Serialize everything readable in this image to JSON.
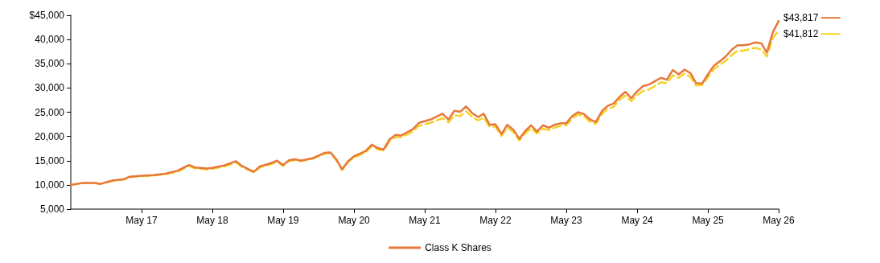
{
  "chart_data": {
    "type": "line",
    "x": [
      "2016-05",
      "2016-07",
      "2016-09",
      "2016-10",
      "2016-12",
      "2017-02",
      "2017-03",
      "2017-05",
      "2017-07",
      "2017-09",
      "2017-11",
      "2018-01",
      "2018-02",
      "2018-04",
      "2018-05",
      "2018-07",
      "2018-09",
      "2018-10",
      "2018-12",
      "2019-01",
      "2019-03",
      "2019-04",
      "2019-05",
      "2019-06",
      "2019-07",
      "2019-08",
      "2019-10",
      "2019-12",
      "2020-01",
      "2020-02",
      "2020-03",
      "2020-04",
      "2020-05",
      "2020-07",
      "2020-08",
      "2020-09",
      "2020-10",
      "2020-11",
      "2020-12",
      "2021-01",
      "2021-03",
      "2021-04",
      "2021-06",
      "2021-08",
      "2021-09",
      "2021-10",
      "2021-11",
      "2021-12",
      "2022-01",
      "2022-02",
      "2022-03",
      "2022-04",
      "2022-05",
      "2022-06",
      "2022-07",
      "2022-08",
      "2022-09",
      "2022-10",
      "2022-11",
      "2022-12",
      "2023-01",
      "2023-02",
      "2023-03",
      "2023-04",
      "2023-05",
      "2023-06",
      "2023-07",
      "2023-08",
      "2023-09",
      "2023-10",
      "2023-11",
      "2023-12",
      "2024-01",
      "2024-02",
      "2024-03",
      "2024-04",
      "2024-05",
      "2024-06",
      "2024-07",
      "2024-08",
      "2024-09",
      "2024-10",
      "2024-11",
      "2024-12",
      "2025-01",
      "2025-02",
      "2025-03",
      "2025-04",
      "2025-05",
      "2025-06",
      "2025-07",
      "2025-08",
      "2025-09",
      "2025-10",
      "2025-11",
      "2025-12",
      "2026-01",
      "2026-02",
      "2026-03",
      "2026-04",
      "2026-05"
    ],
    "series": [
      {
        "name": "Class K Shares",
        "color": "#e8773a",
        "line_style": "solid",
        "values": [
          10000,
          10400,
          10400,
          10200,
          10900,
          11200,
          11700,
          11900,
          12000,
          12300,
          12900,
          14100,
          13600,
          13400,
          13500,
          14000,
          14900,
          13900,
          12700,
          13800,
          14500,
          15000,
          14100,
          15100,
          15300,
          15000,
          15500,
          16600,
          16700,
          15200,
          13200,
          14900,
          15900,
          17000,
          18300,
          17600,
          17300,
          19400,
          20300,
          20200,
          21500,
          22800,
          23500,
          24700,
          23500,
          25300,
          25100,
          26200,
          24800,
          24000,
          24700,
          22400,
          22500,
          20500,
          22400,
          21400,
          19500,
          21100,
          22300,
          21000,
          22300,
          21800,
          22400,
          22700,
          22700,
          24200,
          25000,
          24600,
          23500,
          23000,
          25200,
          26300,
          26800,
          28200,
          29200,
          27900,
          29300,
          30400,
          30700,
          31400,
          32100,
          31700,
          33700,
          32800,
          33800,
          33000,
          31000,
          30900,
          32800,
          34600,
          35500,
          36500,
          37900,
          38800,
          38800,
          39000,
          39400,
          39200,
          37300,
          41500,
          43817
        ],
        "value_labels": [
          null,
          null,
          null,
          null,
          null,
          null,
          null,
          null,
          null,
          null,
          null,
          null,
          null,
          null,
          null,
          null,
          null,
          null,
          null,
          null,
          null,
          null,
          null,
          null,
          null,
          null,
          null,
          null,
          null,
          null,
          null,
          null,
          null,
          null,
          null,
          null,
          null,
          null,
          null,
          null,
          null,
          null,
          null,
          null,
          null,
          null,
          null,
          null,
          null,
          null,
          null,
          null,
          null,
          null,
          null,
          null,
          null,
          null,
          null,
          null,
          null,
          null,
          null,
          null,
          null,
          null,
          null,
          null,
          null,
          null,
          null,
          null,
          null,
          null,
          null,
          null,
          null,
          null,
          null,
          null,
          null,
          null,
          null,
          null,
          null,
          null,
          null,
          null,
          null,
          null,
          null,
          null,
          null,
          null,
          null,
          null,
          null,
          null,
          null,
          null,
          "$43,817"
        ]
      },
      {
        "color": "#f5d327",
        "line_style": "dashed",
        "values": [
          10000,
          10400,
          10400,
          10200,
          10800,
          11100,
          11600,
          11800,
          11900,
          12200,
          12700,
          13900,
          13400,
          13200,
          13300,
          13800,
          14600,
          13700,
          12600,
          13600,
          14300,
          14800,
          13900,
          14900,
          15100,
          14900,
          15400,
          16400,
          16600,
          15000,
          13100,
          14700,
          15600,
          16700,
          18000,
          17300,
          17100,
          19100,
          19800,
          19800,
          21000,
          22200,
          22800,
          23800,
          22900,
          24400,
          24200,
          25200,
          24000,
          23300,
          23900,
          22000,
          22000,
          20100,
          21800,
          20900,
          19200,
          20600,
          21700,
          20600,
          21600,
          21300,
          21800,
          22200,
          22300,
          23700,
          24500,
          24200,
          23000,
          22600,
          24600,
          25700,
          26100,
          27600,
          28400,
          27300,
          28500,
          29400,
          29700,
          30400,
          31200,
          31000,
          32600,
          32100,
          33000,
          32200,
          30500,
          30600,
          32200,
          33900,
          34800,
          35600,
          36800,
          37700,
          37700,
          38000,
          38300,
          37900,
          36500,
          40300,
          41812
        ],
        "value_labels": [
          null,
          null,
          null,
          null,
          null,
          null,
          null,
          null,
          null,
          null,
          null,
          null,
          null,
          null,
          null,
          null,
          null,
          null,
          null,
          null,
          null,
          null,
          null,
          null,
          null,
          null,
          null,
          null,
          null,
          null,
          null,
          null,
          null,
          null,
          null,
          null,
          null,
          null,
          null,
          null,
          null,
          null,
          null,
          null,
          null,
          null,
          null,
          null,
          null,
          null,
          null,
          null,
          null,
          null,
          null,
          null,
          null,
          null,
          null,
          null,
          null,
          null,
          null,
          null,
          null,
          null,
          null,
          null,
          null,
          null,
          null,
          null,
          null,
          null,
          null,
          null,
          null,
          null,
          null,
          null,
          null,
          null,
          null,
          null,
          null,
          null,
          null,
          null,
          null,
          null,
          null,
          null,
          null,
          null,
          null,
          null,
          null,
          null,
          null,
          null,
          "$41,812"
        ]
      }
    ],
    "xlim": [
      "2016-05",
      "2026-05"
    ],
    "xticks": [
      {
        "value": "2017-05",
        "label": "May 17"
      },
      {
        "value": "2018-05",
        "label": "May 18"
      },
      {
        "value": "2019-05",
        "label": "May 19"
      },
      {
        "value": "2020-05",
        "label": "May 20"
      },
      {
        "value": "2021-05",
        "label": "May 21"
      },
      {
        "value": "2022-05",
        "label": "May 22"
      },
      {
        "value": "2023-05",
        "label": "May 23"
      },
      {
        "value": "2024-05",
        "label": "May 24"
      },
      {
        "value": "2025-05",
        "label": "May 25"
      },
      {
        "value": "2026-05",
        "label": "May 26"
      }
    ],
    "ylim": [
      5000,
      45000
    ],
    "yticks": [
      {
        "value": 5000,
        "label": "5,000"
      },
      {
        "value": 10000,
        "label": "10,000"
      },
      {
        "value": 15000,
        "label": "15,000"
      },
      {
        "value": 20000,
        "label": "20,000"
      },
      {
        "value": 25000,
        "label": "25,000"
      },
      {
        "value": 30000,
        "label": "30,000"
      },
      {
        "value": 35000,
        "label": "35,000"
      },
      {
        "value": 40000,
        "label": "40,000"
      },
      {
        "value": 45000,
        "label": "$45,000"
      }
    ],
    "grid": false,
    "legend": "bottom",
    "marker": "none"
  }
}
